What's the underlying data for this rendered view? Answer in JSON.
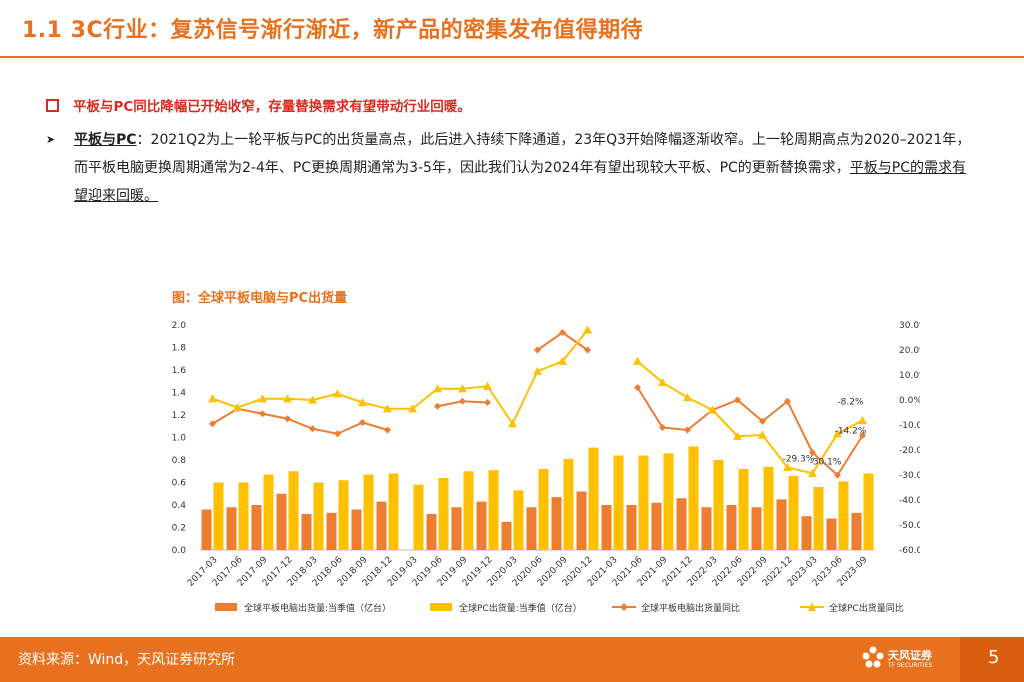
{
  "title": "1.1 3C行业：复苏信号渐行渐近，新产品的密集发布值得期待",
  "bullet1": "平板与PC同比降幅已开始收窄，存量替换需求有望带动行业回暖。",
  "bullet2": {
    "lead": "平板与PC",
    "text": "：2021Q2为上一轮平板与PC的出货量高点，此后进入持续下降通道，23年Q3开始降幅逐渐收窄。上一轮周期高点为2020–2021年，而平板电脑更换周期通常为2-4年、PC更换周期通常为3-5年，因此我们认为2024年有望出现较大平板、PC的更新替换需求，",
    "underlined": "平板与PC的需求有望迎来回暖。"
  },
  "chart_title": "图：全球平板电脑与PC出货量",
  "footer": {
    "source": "资料来源：Wind，天风证券研究所",
    "logo_text": "天风证券",
    "logo_sub": "TF SECURITIES",
    "page": "5"
  },
  "colors": {
    "orange": "#E8711F",
    "gold": "#FFC000",
    "red": "#D92B22"
  },
  "chart_data": {
    "type": "bar+line",
    "categories": [
      "2017-03",
      "2017-06",
      "2017-09",
      "2017-12",
      "2018-03",
      "2018-06",
      "2018-09",
      "2018-12",
      "2019-03",
      "2019-06",
      "2019-09",
      "2019-12",
      "2020-03",
      "2020-06",
      "2020-09",
      "2020-12",
      "2021-03",
      "2021-06",
      "2021-09",
      "2021-12",
      "2022-03",
      "2022-06",
      "2022-09",
      "2022-12",
      "2023-03",
      "2023-06",
      "2023-09"
    ],
    "left_axis": {
      "min": 0,
      "max": 2.0,
      "ticks": [
        "0.0",
        "0.2",
        "0.4",
        "0.6",
        "0.8",
        "1.0",
        "1.2",
        "1.4",
        "1.6",
        "1.8",
        "2.0"
      ]
    },
    "right_axis": {
      "min": -60,
      "max": 30,
      "ticks": [
        "-60.0%",
        "-50.0%",
        "-40.0%",
        "-30.0%",
        "-20.0%",
        "-10.0%",
        "0.0%",
        "10.0%",
        "20.0%",
        "30.0%"
      ]
    },
    "series": [
      {
        "name": "全球平板电脑出货量:当季值（亿台）",
        "type": "bar",
        "axis": "left",
        "color": "#ED7D31",
        "values": [
          0.36,
          0.38,
          0.4,
          0.5,
          0.32,
          0.33,
          0.36,
          0.43,
          null,
          0.32,
          0.38,
          0.43,
          0.25,
          0.38,
          0.47,
          0.52,
          0.4,
          0.4,
          0.42,
          0.46,
          0.38,
          0.4,
          0.38,
          0.45,
          0.3,
          0.28,
          0.33
        ]
      },
      {
        "name": "全球PC出货量:当季值（亿台）",
        "type": "bar",
        "axis": "left",
        "color": "#FFC000",
        "values": [
          0.6,
          0.6,
          0.67,
          0.7,
          0.6,
          0.62,
          0.67,
          0.68,
          0.58,
          0.64,
          0.7,
          0.71,
          0.53,
          0.72,
          0.81,
          0.91,
          0.84,
          0.84,
          0.86,
          0.92,
          0.8,
          0.72,
          0.74,
          0.66,
          0.56,
          0.61,
          0.68
        ]
      },
      {
        "name": "全球平板电脑出货量同比",
        "type": "line",
        "axis": "right",
        "color": "#ED7D31",
        "values": [
          -9.5,
          -3.5,
          -5.5,
          -7.5,
          -11.5,
          -13.5,
          -9.0,
          -12.0,
          null,
          -2.5,
          -0.5,
          -1.0,
          null,
          20.0,
          27.0,
          20.0,
          null,
          5.0,
          -11.0,
          -12.0,
          -4.0,
          0.0,
          -8.5,
          -0.5,
          -21.0,
          -30.1,
          -14.2
        ]
      },
      {
        "name": "全球PC出货量同比",
        "type": "line",
        "axis": "right",
        "color": "#FFC000",
        "values": [
          0.5,
          -3.0,
          0.5,
          0.5,
          0.0,
          2.5,
          -1.0,
          -3.5,
          -3.5,
          4.5,
          4.5,
          5.5,
          -9.5,
          11.5,
          15.5,
          28.0,
          null,
          15.5,
          7.0,
          1.0,
          -4.0,
          -14.5,
          -14.0,
          -27.0,
          -29.3,
          -13.5,
          -8.2
        ]
      }
    ],
    "annotations": [
      {
        "text": "-8.2%",
        "category": "2023-09",
        "series": "全球PC出货量同比"
      },
      {
        "text": "-14.2%",
        "category": "2023-09",
        "series": "全球平板电脑出货量同比"
      },
      {
        "text": "-29.3%",
        "category": "2023-03",
        "series": "全球PC出货量同比"
      },
      {
        "text": "-30.1%",
        "category": "2023-06",
        "series": "全球平板电脑出货量同比"
      }
    ],
    "legend_position": "bottom"
  }
}
